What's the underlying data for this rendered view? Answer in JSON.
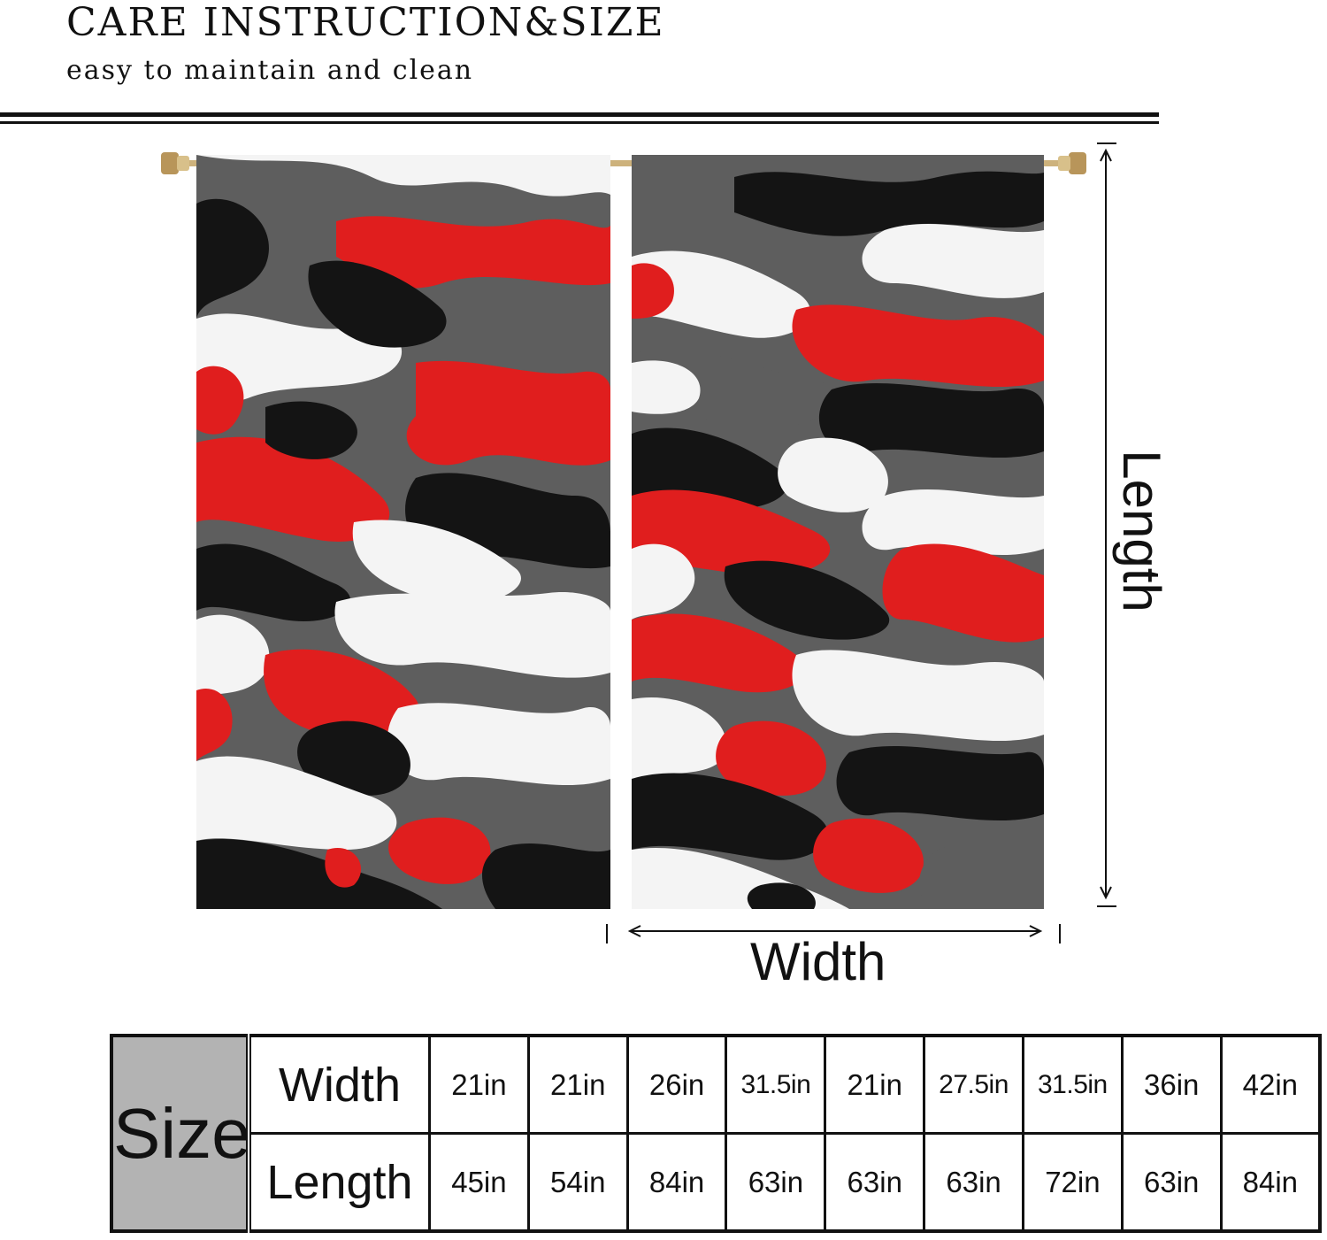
{
  "header": {
    "title": "CARE INSTRUCTION&SIZE",
    "subtitle": "easy to maintain and clean"
  },
  "diagram": {
    "width_label": "Width",
    "length_label": "Length",
    "colors": {
      "red": "#e01e1e",
      "black": "#141414",
      "gray": "#5e5e5e",
      "white": "#f4f4f4",
      "rod": "#c9a86a"
    }
  },
  "size_table": {
    "size_label": "Size",
    "width_label": "Width",
    "length_label": "Length",
    "widths": [
      "21in",
      "21in",
      "26in",
      "31.5in",
      "21in",
      "27.5in",
      "31.5in",
      "36in",
      "42in"
    ],
    "lengths": [
      "45in",
      "54in",
      "84in",
      "63in",
      "63in",
      "63in",
      "72in",
      "63in",
      "84in"
    ],
    "header_bg": "#b3b3b3"
  }
}
